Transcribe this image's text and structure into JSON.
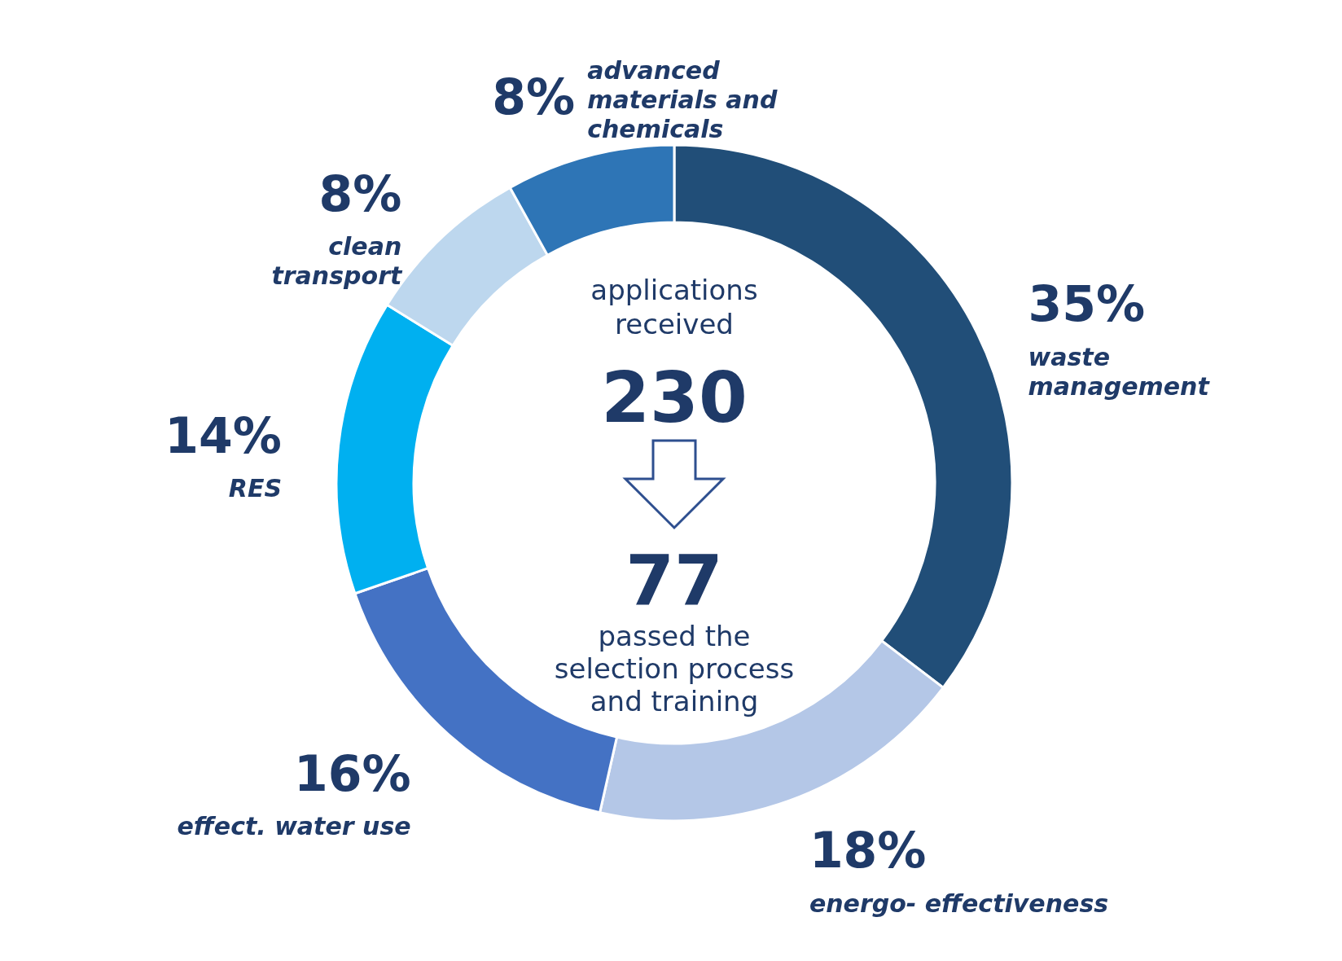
{
  "chart_data": {
    "type": "donut",
    "categories": [
      "waste management",
      "energo- effectiveness",
      "effect. water use",
      "RES",
      "clean transport",
      "advanced materials and chemicals"
    ],
    "values": [
      35,
      18,
      16,
      14,
      8,
      8
    ],
    "value_labels": [
      "35%",
      "18%",
      "16%",
      "14%",
      "8%",
      "8%"
    ],
    "colors": [
      "#214e78",
      "#b4c7e7",
      "#4472c4",
      "#00b0f0",
      "#bdd7ee",
      "#2e75b6"
    ],
    "annotations": [
      "applications received",
      "230",
      "77",
      "passed the selection process and training"
    ]
  }
}
